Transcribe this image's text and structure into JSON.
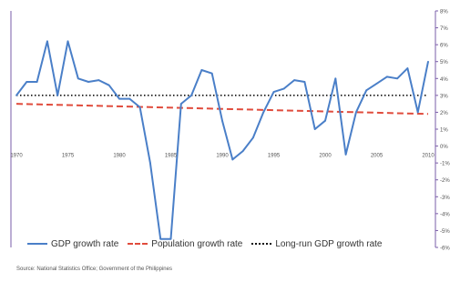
{
  "chart_data": {
    "type": "line",
    "x": [
      1970,
      1971,
      1972,
      1973,
      1974,
      1975,
      1976,
      1977,
      1978,
      1979,
      1980,
      1981,
      1982,
      1983,
      1984,
      1985,
      1986,
      1987,
      1988,
      1989,
      1990,
      1991,
      1992,
      1993,
      1994,
      1995,
      1996,
      1997,
      1998,
      1999,
      2000,
      2001,
      2002,
      2003,
      2004,
      2005,
      2006,
      2007,
      2008,
      2009,
      2010
    ],
    "x_ticks": [
      1970,
      1975,
      1980,
      1985,
      1990,
      1995,
      2000,
      2005,
      2010
    ],
    "x_tick_labels": [
      "1970",
      "1975",
      "1980",
      "1985",
      "1990",
      "1995",
      "2000",
      "2005",
      "2010"
    ],
    "y_ticks": [
      -6,
      -5,
      -4,
      -3,
      -2,
      -1,
      0,
      1,
      2,
      3,
      4,
      5,
      6,
      7,
      8
    ],
    "y_tick_labels": [
      "-6%",
      "-5%",
      "-4%",
      "-3%",
      "-2%",
      "-1%",
      "0%",
      "1%",
      "2%",
      "3%",
      "4%",
      "5%",
      "6%",
      "7%",
      "8%"
    ],
    "ylim": [
      -6,
      8
    ],
    "xlim": [
      1970,
      2010
    ],
    "y_axis_position": "right",
    "grid": false,
    "legend_position": "bottom",
    "series": [
      {
        "name": "GDP growth rate",
        "color": "#4a7fc8",
        "style": "solid",
        "values": [
          3.0,
          3.8,
          3.8,
          6.2,
          3.0,
          6.2,
          4.0,
          3.8,
          3.9,
          3.6,
          2.8,
          2.8,
          2.3,
          -1.0,
          -5.5,
          -5.5,
          2.5,
          3.0,
          4.5,
          4.3,
          1.5,
          -0.8,
          -0.3,
          0.5,
          2.0,
          3.2,
          3.4,
          3.9,
          3.8,
          1.0,
          1.5,
          4.0,
          -0.5,
          2.0,
          3.3,
          3.7,
          4.1,
          4.0,
          4.6,
          2.0,
          5.0
        ]
      },
      {
        "name": "Population growth rate",
        "color": "#e04b3c",
        "style": "dashed",
        "x_range": [
          1970,
          2010
        ],
        "values_at_ends": [
          2.5,
          1.9
        ]
      },
      {
        "name": "Long-run GDP growth rate",
        "color": "#111111",
        "style": "dotted",
        "x_range": [
          1970,
          2010
        ],
        "values_at_ends": [
          3.0,
          3.0
        ]
      }
    ],
    "source": "Source: National Statistics Office; Government of the Philippines"
  }
}
